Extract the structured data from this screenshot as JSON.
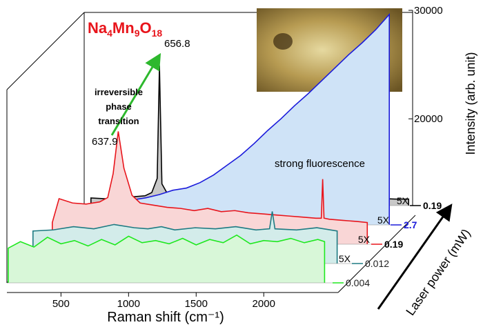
{
  "chart_data": {
    "type": "waterfall",
    "title_parts": [
      "Na",
      "4",
      "Mn",
      "9",
      "O",
      "18"
    ],
    "x_label": "Raman shift (cm⁻¹)",
    "y_label": "Intensity (arb. unit)",
    "z_label": "Laser power (mW)",
    "annotations": {
      "peak_after": "656.8",
      "peak_before": "637.9",
      "transition": [
        "irreversible",
        "phase",
        "transition"
      ],
      "fluorescence": "strong fluorescence"
    },
    "xlim": [
      100,
      2550
    ],
    "xticks": [
      500,
      1000,
      1500,
      2000
    ],
    "ylim": [
      12000,
      30000
    ],
    "yticks": [
      20000,
      30000
    ],
    "series": [
      {
        "name": "0.004",
        "color": "#1ee81e",
        "fill": "#d8f7d8",
        "label_color": "#222222",
        "x": [
          110,
          200,
          300,
          400,
          500,
          600,
          700,
          800,
          900,
          1000,
          1100,
          1200,
          1300,
          1400,
          1500,
          1600,
          1700,
          1800,
          1900,
          2000,
          2100,
          2200,
          2300,
          2400,
          2450
        ],
        "values": [
          15200,
          15800,
          15300,
          16200,
          15600,
          15900,
          15400,
          16000,
          15500,
          16300,
          15700,
          15900,
          15600,
          16100,
          15500,
          16000,
          15700,
          16400,
          15600,
          15900,
          15800,
          16100,
          15700,
          16000,
          15800
        ]
      },
      {
        "name": "0.012",
        "color": "#1d7a82",
        "fill": "#d3ecea",
        "label_color": "#222222",
        "multiplier": "5X",
        "x": [
          150,
          300,
          450,
          600,
          750,
          900,
          1000,
          1100,
          1200,
          1350,
          1500,
          1650,
          1800,
          1900,
          1920,
          1940,
          2100,
          2250,
          2400
        ],
        "values": [
          15000,
          15100,
          15400,
          15200,
          15600,
          15300,
          15200,
          15400,
          15100,
          15300,
          15200,
          15400,
          15100,
          15200,
          16800,
          15200,
          15100,
          15300,
          15000
        ]
      },
      {
        "name": "0.19",
        "color": "#e8141b",
        "fill": "#f9d6d6",
        "label_color": "#000000",
        "multiplier": "5X",
        "x": [
          150,
          200,
          300,
          400,
          500,
          560,
          600,
          637.9,
          680,
          740,
          800,
          900,
          1000,
          1100,
          1200,
          1300,
          1400,
          1500,
          1600,
          1700,
          1800,
          1900,
          2000,
          2100,
          2140,
          2150,
          2160,
          2200,
          2300,
          2400,
          2480
        ],
        "values": [
          14000,
          16200,
          15800,
          15700,
          15900,
          16300,
          18500,
          22400,
          19000,
          16500,
          15800,
          15600,
          15400,
          15300,
          15100,
          15300,
          15000,
          15100,
          14900,
          14800,
          14700,
          14600,
          14500,
          14400,
          14400,
          18000,
          14400,
          14300,
          14200,
          14100,
          14000
        ]
      },
      {
        "name": "2.7",
        "color": "#1a1adb",
        "fill": "#cfe3f7",
        "label_color": "#1a1adb",
        "multiplier": "5X",
        "x": [
          500,
          600,
          700,
          800,
          900,
          1000,
          1100,
          1200,
          1300,
          1400,
          1500,
          1600,
          1700,
          1800,
          1900,
          2000,
          2100,
          2200,
          2300,
          2400,
          2500
        ],
        "values": [
          14600,
          14300,
          14500,
          14800,
          15200,
          15400,
          15900,
          16600,
          17500,
          18400,
          19500,
          20700,
          21800,
          23000,
          24100,
          25300,
          26500,
          27700,
          28800,
          30000,
          31400
        ]
      },
      {
        "name": "0.19",
        "color": "#000000",
        "fill": "#c8c8c8",
        "label_color": "#000000",
        "multiplier": "5X",
        "x": [
          150,
          300,
          450,
          550,
          600,
          640,
          656.8,
          675,
          720,
          800,
          1000,
          1200,
          1400,
          1600,
          1800,
          2000,
          2200,
          2400,
          2500
        ],
        "values": [
          12700,
          12600,
          12800,
          12900,
          13200,
          14500,
          24900,
          14000,
          13000,
          12800,
          12700,
          12600,
          12700,
          12600,
          12700,
          12600,
          12700,
          12600,
          12600
        ]
      }
    ]
  }
}
